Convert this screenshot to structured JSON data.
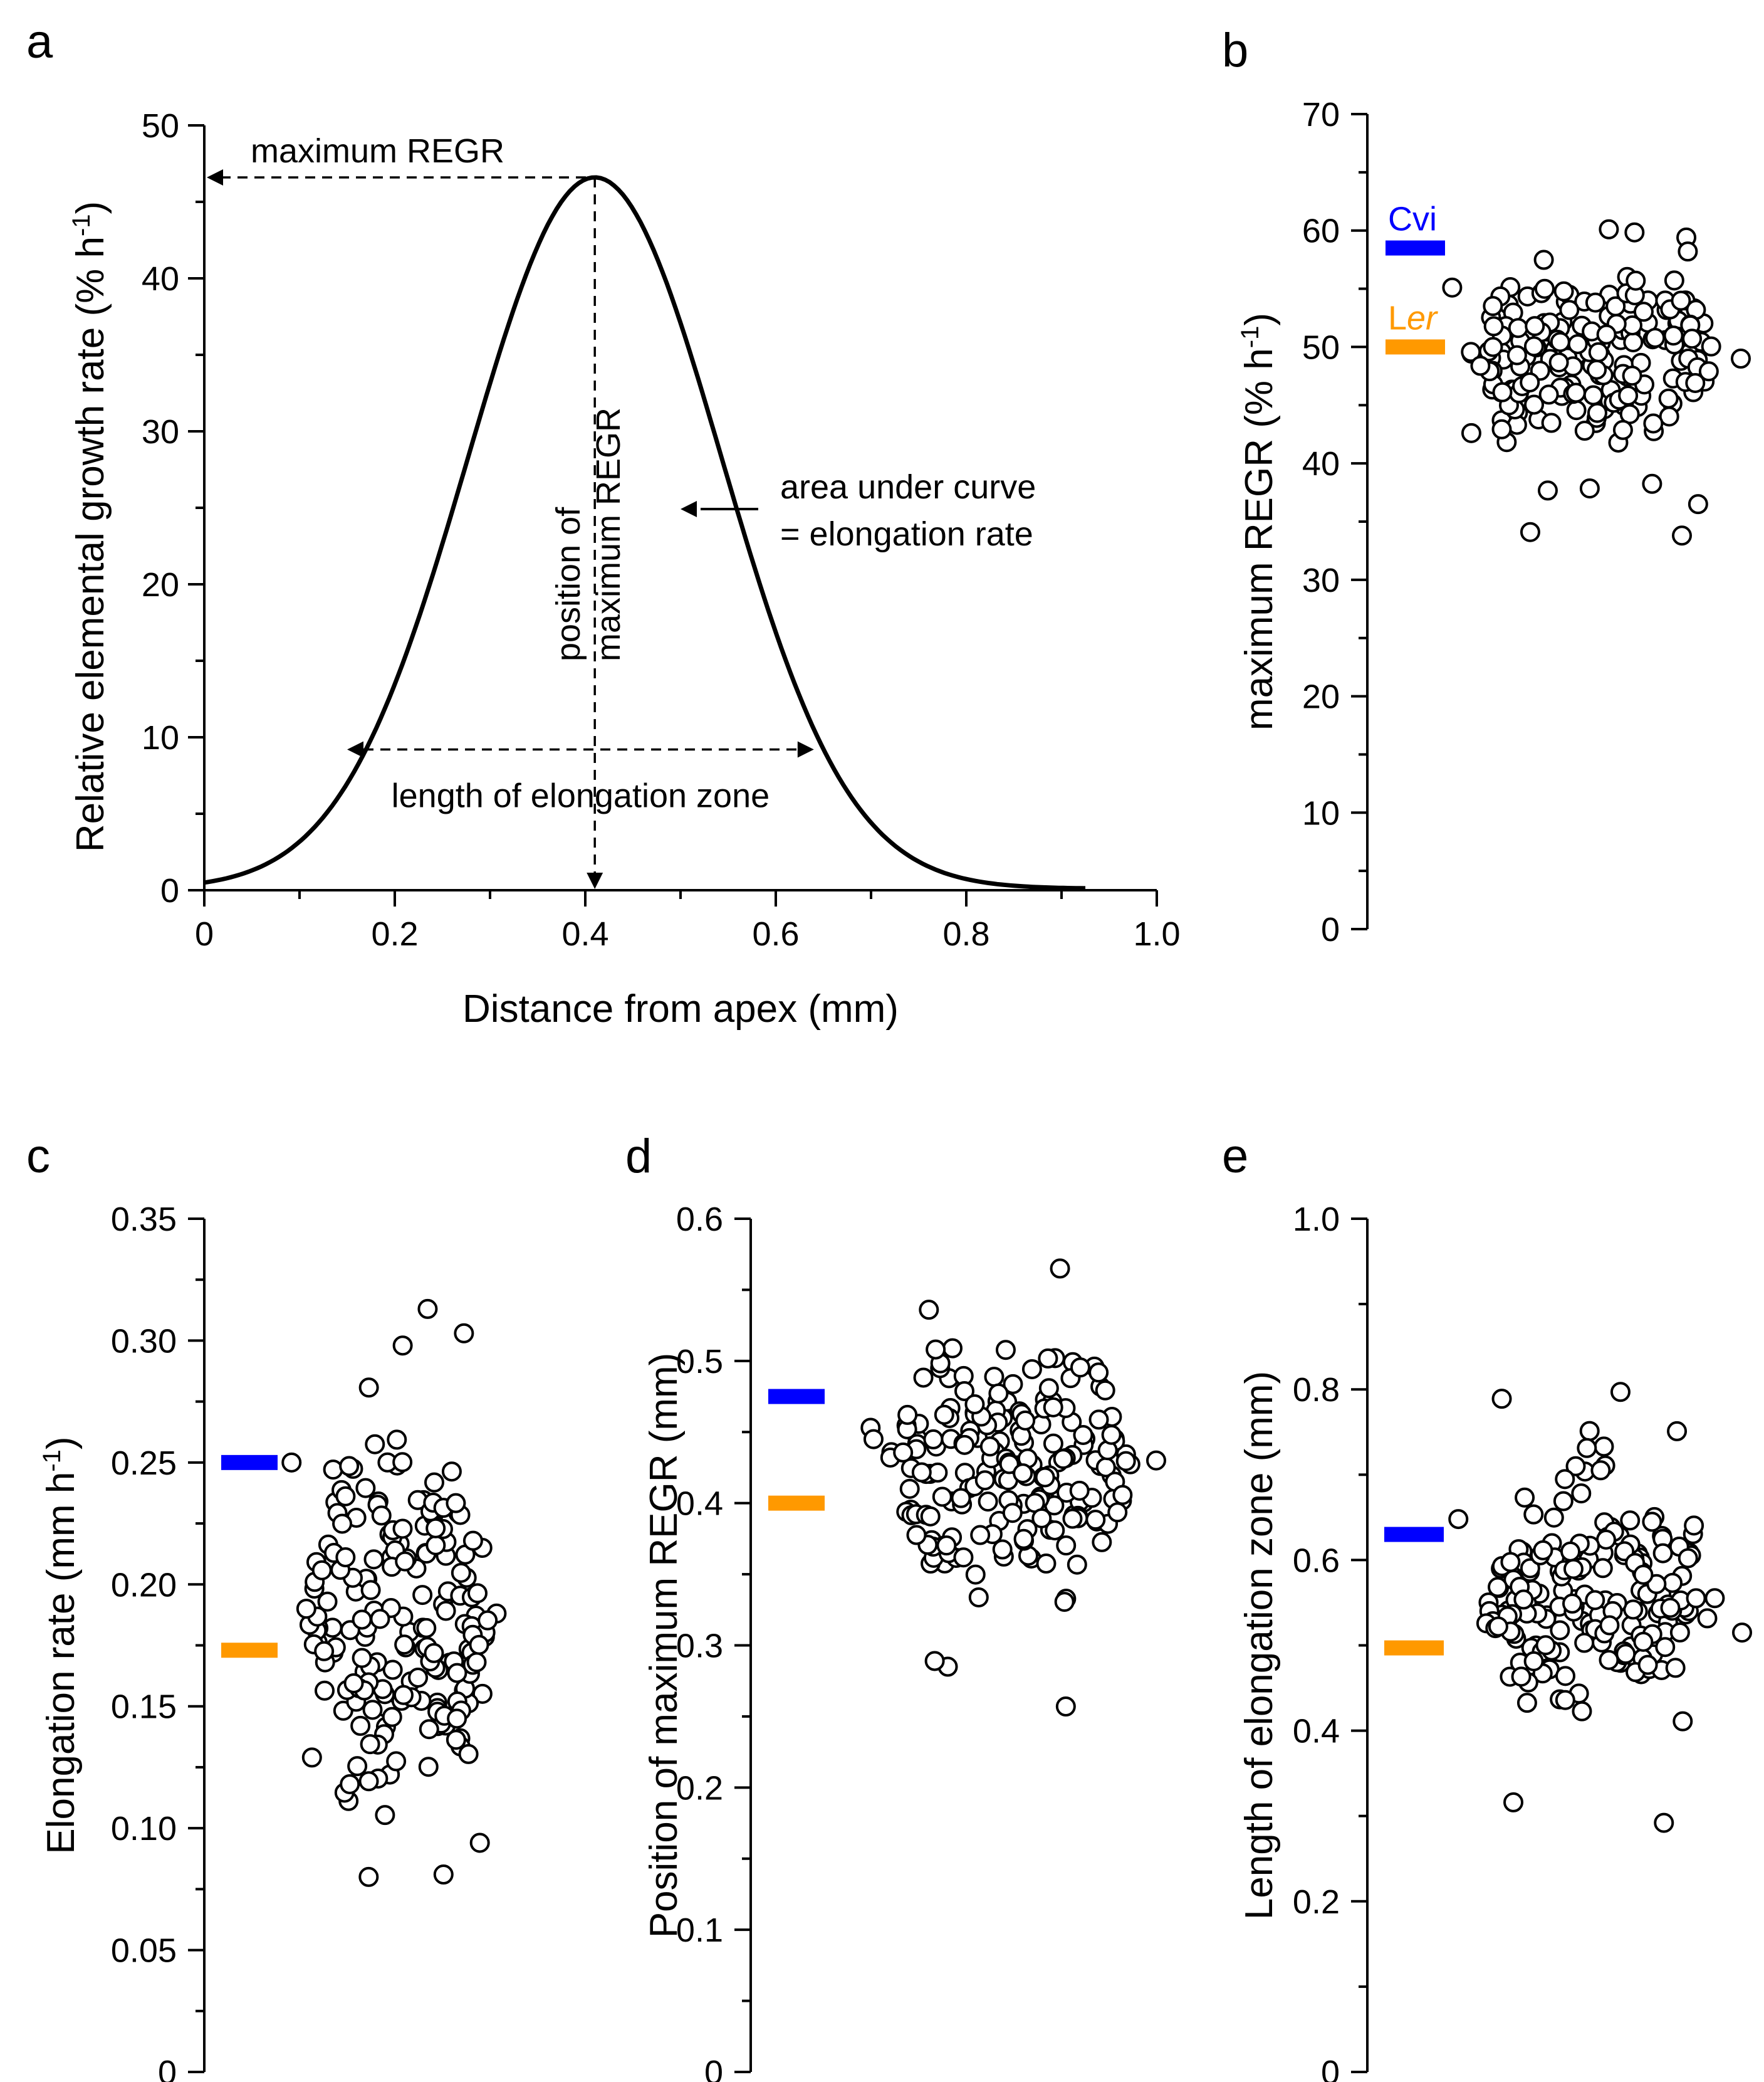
{
  "colors": {
    "cvi": "#0000ff",
    "ler": "#ff9900",
    "ink": "#000000"
  },
  "chart_data": [
    {
      "panel": "a",
      "type": "line",
      "xlabel": "Distance from apex (mm)",
      "ylabel": "Relative elemental growth rate (% h",
      "ylabel_sup": "-1",
      "ylabel_end": ")",
      "xlim": [
        0,
        1.0
      ],
      "ylim": [
        0,
        50
      ],
      "xticks": [
        "0",
        "0.2",
        "0.4",
        "0.6",
        "0.8",
        "1.0"
      ],
      "yticks": [
        "0",
        "10",
        "20",
        "30",
        "40",
        "50"
      ],
      "curve": {
        "peak_x": 0.41,
        "peak_y": 46.6,
        "sigma": 0.133,
        "x_start": 0,
        "x_end": 0.925
      },
      "annotations": {
        "max_regr": "maximum REGR",
        "position_line1": "position of",
        "position_line2": "maximum REGR",
        "area_line1": "area under curve",
        "area_line2": "= elongation rate",
        "length_zone": "length of elongation zone"
      },
      "elongation_zone": {
        "x_from": 0.15,
        "x_to": 0.64,
        "y": 9.2
      }
    },
    {
      "panel": "b",
      "type": "scatter",
      "ylabel": "maximum REGR (% h",
      "ylabel_sup": "-1",
      "ylabel_end": ")",
      "ylim": [
        0,
        70
      ],
      "yticks": [
        "0",
        "10",
        "20",
        "30",
        "40",
        "50",
        "60",
        "70"
      ],
      "ytick_values": [
        0,
        10,
        20,
        30,
        40,
        50,
        60,
        70
      ],
      "parents": [
        {
          "name": "Cvi",
          "value": 58.5,
          "color": "#0000ff",
          "label": "Cvi",
          "italic": false
        },
        {
          "name": "Ler",
          "value": 50.0,
          "color": "#ff9900",
          "label": "Ler",
          "label_plain": "L",
          "label_italic": "er"
        }
      ],
      "center": 49.0,
      "spread": 4.6,
      "n": 190,
      "seed": 11,
      "outliers": [
        [
          -0.96,
          55.1
        ],
        [
          1.0,
          49.0
        ],
        [
          0.63,
          59.4
        ],
        [
          0.64,
          58.2
        ],
        [
          0.6,
          33.8
        ],
        [
          -0.43,
          34.1
        ],
        [
          0.71,
          36.5
        ],
        [
          -0.83,
          42.6
        ]
      ]
    },
    {
      "panel": "c",
      "type": "scatter",
      "ylabel": "Elongation rate (mm h",
      "ylabel_sup": "-1",
      "ylabel_end": ")",
      "ylim": [
        0,
        0.35
      ],
      "yticks": [
        "0",
        "0.05",
        "0.10",
        "0.15",
        "0.20",
        "0.25",
        "0.30",
        "0.35"
      ],
      "ytick_values": [
        0,
        0.05,
        0.1,
        0.15,
        0.2,
        0.25,
        0.3,
        0.35
      ],
      "parents": [
        {
          "name": "Cvi",
          "value": 0.25,
          "color": "#0000ff"
        },
        {
          "name": "Ler",
          "value": 0.173,
          "color": "#ff9900"
        }
      ],
      "center": 0.186,
      "spread": 0.038,
      "n": 190,
      "seed": 23,
      "outliers": [
        [
          0.24,
          0.313
        ],
        [
          0.02,
          0.298
        ],
        [
          0.56,
          0.303
        ],
        [
          -0.28,
          0.08
        ],
        [
          0.38,
          0.081
        ],
        [
          0.7,
          0.094
        ],
        [
          -0.96,
          0.25
        ],
        [
          -0.78,
          0.129
        ]
      ]
    },
    {
      "panel": "d",
      "type": "scatter",
      "ylabel": "Position of maximum REGR (mm)",
      "ylim": [
        0,
        0.6
      ],
      "yticks": [
        "0",
        "0.1",
        "0.2",
        "0.3",
        "0.4",
        "0.5",
        "0.6"
      ],
      "ytick_values": [
        0,
        0.1,
        0.2,
        0.3,
        0.4,
        0.5,
        0.6
      ],
      "parents": [
        {
          "name": "Cvi",
          "value": 0.475,
          "color": "#0000ff"
        },
        {
          "name": "Ler",
          "value": 0.4,
          "color": "#ff9900"
        }
      ],
      "center": 0.425,
      "spread": 0.045,
      "n": 190,
      "seed": 37,
      "outliers": [
        [
          0.34,
          0.565
        ],
        [
          0.38,
          0.257
        ],
        [
          1.0,
          0.43
        ],
        [
          -0.43,
          0.285
        ],
        [
          -0.52,
          0.289
        ],
        [
          -0.96,
          0.453
        ],
        [
          -0.94,
          0.445
        ],
        [
          -0.56,
          0.536
        ]
      ]
    },
    {
      "panel": "e",
      "type": "scatter",
      "ylabel": "Length of elongation zone (mm)",
      "ylim": [
        0,
        1.0
      ],
      "yticks": [
        "0",
        "0.2",
        "0.4",
        "0.6",
        "0.8",
        "1.0"
      ],
      "ytick_values": [
        0,
        0.2,
        0.4,
        0.6,
        0.8,
        1.0
      ],
      "parents": [
        {
          "name": "Cvi",
          "value": 0.63,
          "color": "#0000ff"
        },
        {
          "name": "Ler",
          "value": 0.497,
          "color": "#ff9900"
        }
      ],
      "center": 0.56,
      "spread": 0.075,
      "n": 190,
      "seed": 53,
      "outliers": [
        [
          1.0,
          0.515
        ],
        [
          0.55,
          0.751
        ],
        [
          -0.66,
          0.789
        ],
        [
          0.16,
          0.797
        ],
        [
          0.46,
          0.292
        ],
        [
          -0.58,
          0.316
        ],
        [
          -0.96,
          0.648
        ],
        [
          0.59,
          0.411
        ]
      ]
    }
  ]
}
